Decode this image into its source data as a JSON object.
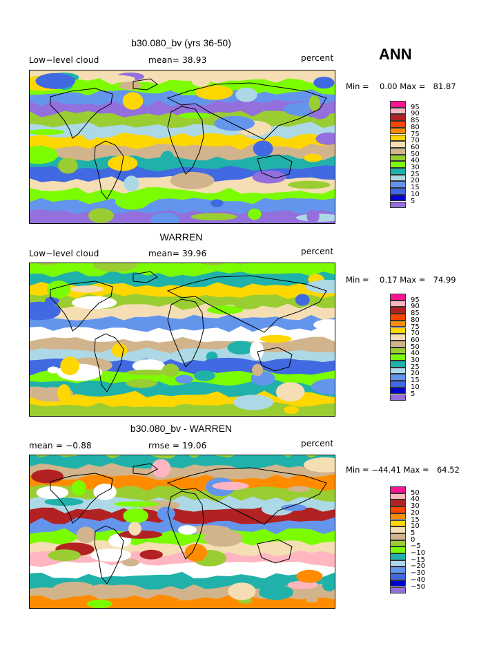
{
  "season": "ANN",
  "panels": [
    {
      "title": "b30.080_bv (yrs 36-50)",
      "left_label": "Low−level cloud",
      "mid_label": "mean=  38.93",
      "units": "percent",
      "min_label": "Min = ",
      "min_value": "0.00",
      "max_label": "Max = ",
      "max_value": "81.87",
      "legend": {
        "labels": [
          "95",
          "90",
          "85",
          "80",
          "75",
          "70",
          "60",
          "50",
          "40",
          "30",
          "25",
          "20",
          "15",
          "10",
          "5"
        ],
        "colors": [
          "#ff1493",
          "#ffb6c1",
          "#b22222",
          "#ff4500",
          "#ff8c00",
          "#ffd700",
          "#f5deb3",
          "#d2b48c",
          "#9acd32",
          "#7cfc00",
          "#20b2aa",
          "#add8e6",
          "#6495ed",
          "#4169e1",
          "#0000cd",
          "#9370db"
        ]
      },
      "map_palette": [
        "#f5deb3",
        "#d2b48c",
        "#9acd32",
        "#7cfc00",
        "#20b2aa",
        "#add8e6",
        "#6495ed",
        "#4169e1",
        "#ffd700",
        "#9370db"
      ]
    },
    {
      "title": "WARREN",
      "left_label": "Low−level cloud",
      "mid_label": "mean=  39.96",
      "units": "percent",
      "min_label": "Min = ",
      "min_value": "0.17",
      "max_label": "Max = ",
      "max_value": "74.99",
      "legend": {
        "labels": [
          "95",
          "90",
          "85",
          "80",
          "75",
          "70",
          "60",
          "50",
          "40",
          "30",
          "25",
          "20",
          "15",
          "10",
          "5"
        ],
        "colors": [
          "#ff1493",
          "#ffb6c1",
          "#b22222",
          "#ff4500",
          "#ff8c00",
          "#ffd700",
          "#f5deb3",
          "#d2b48c",
          "#9acd32",
          "#7cfc00",
          "#20b2aa",
          "#add8e6",
          "#6495ed",
          "#4169e1",
          "#0000cd",
          "#9370db"
        ]
      },
      "map_palette": [
        "#9acd32",
        "#7cfc00",
        "#d2b48c",
        "#f5deb3",
        "#20b2aa",
        "#add8e6",
        "#6495ed",
        "#ffd700",
        "#4169e1",
        "#ffffff"
      ]
    },
    {
      "title": "b30.080_bv - WARREN",
      "left_label": "mean =  −0.88",
      "mid_label": "rmse =  19.06",
      "units": "percent",
      "min_label": "Min = ",
      "min_value": "−44.41",
      "max_label": "Max = ",
      "max_value": "64.52",
      "legend": {
        "labels": [
          "50",
          "40",
          "30",
          "20",
          "15",
          "10",
          "5",
          "0",
          "−5",
          "−10",
          "−15",
          "−20",
          "−30",
          "−40",
          "−50"
        ],
        "colors": [
          "#ff1493",
          "#ffb6c1",
          "#b22222",
          "#ff4500",
          "#ff8c00",
          "#ffd700",
          "#f5deb3",
          "#d2b48c",
          "#9acd32",
          "#7cfc00",
          "#20b2aa",
          "#add8e6",
          "#6495ed",
          "#4169e1",
          "#0000cd",
          "#9370db"
        ]
      },
      "map_palette": [
        "#9acd32",
        "#7cfc00",
        "#20b2aa",
        "#add8e6",
        "#f5deb3",
        "#d2b48c",
        "#b22222",
        "#ffb6c1",
        "#ff8c00",
        "#6495ed",
        "#ffffff"
      ]
    }
  ]
}
